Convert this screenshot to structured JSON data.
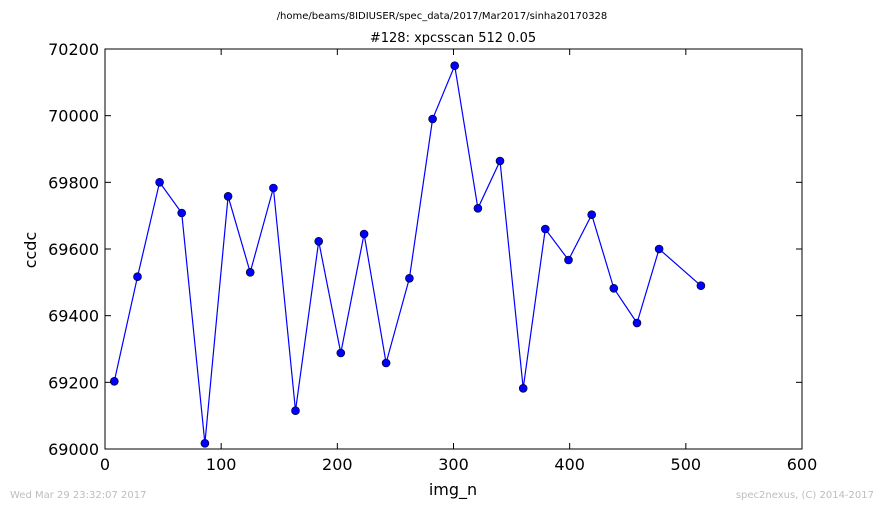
{
  "page": {
    "suptitle": "/home/beams/8IDIUSER/spec_data/2017/Mar2017/sinha20170328",
    "footer_left": "Wed Mar 29 23:32:07 2017",
    "footer_right": "spec2nexus, (C) 2014-2017"
  },
  "chart_data": {
    "type": "line",
    "title": "#128: xpcsscan 512 0.05",
    "xlabel": "img_n",
    "ylabel": "ccdc",
    "xlim": [
      0,
      600
    ],
    "ylim": [
      69000,
      70200
    ],
    "xticks": [
      0,
      100,
      200,
      300,
      400,
      500,
      600
    ],
    "yticks": [
      69000,
      69200,
      69400,
      69600,
      69800,
      70000,
      70200
    ],
    "grid": false,
    "series": [
      {
        "color": "#0000ff",
        "marker_color": "#0000ff",
        "x": [
          8,
          28,
          47,
          66,
          86,
          106,
          125,
          145,
          164,
          184,
          203,
          223,
          242,
          262,
          282,
          301,
          321,
          340,
          360,
          379,
          399,
          419,
          438,
          458,
          477,
          513
        ],
        "y": [
          69203,
          69517,
          69800,
          69708,
          69017,
          69758,
          69530,
          69783,
          69115,
          69623,
          69288,
          69645,
          69258,
          69512,
          69990,
          70150,
          69722,
          69864,
          69182,
          69660,
          69567,
          69703,
          69482,
          69378,
          69600,
          69490
        ]
      }
    ]
  }
}
